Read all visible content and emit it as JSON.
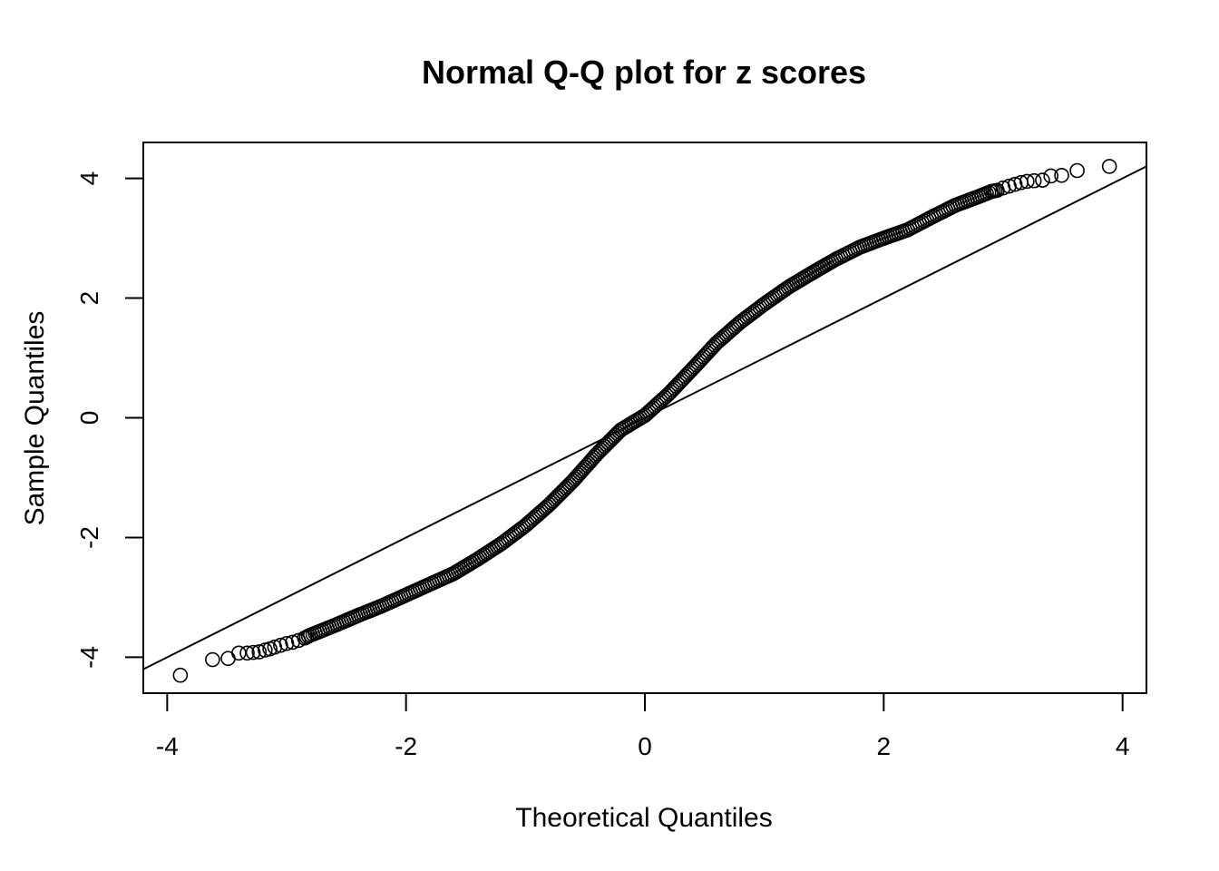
{
  "chart_data": {
    "type": "scatter",
    "title": "Normal Q-Q plot for z scores",
    "xlabel": "Theoretical Quantiles",
    "ylabel": "Sample Quantiles",
    "xlim": [
      -4.2,
      4.2
    ],
    "ylim": [
      -4.6,
      4.6
    ],
    "x_ticks": [
      -4,
      -2,
      0,
      2,
      4
    ],
    "y_ticks": [
      -4,
      -2,
      0,
      2,
      4
    ],
    "x_tick_labels": [
      "-4",
      "-2",
      "0",
      "2",
      "4"
    ],
    "y_tick_labels": [
      "-4",
      "-2",
      "0",
      "2",
      "4"
    ],
    "grid": false,
    "legend": "none",
    "reference_line": {
      "slope": 1.0,
      "intercept": 0.0
    },
    "series": [
      {
        "points": [
          [
            -3.89,
            -4.3
          ],
          [
            -3.62,
            -4.04
          ],
          [
            -3.49,
            -4.02
          ],
          [
            -3.4,
            -3.93
          ],
          [
            -3.33,
            -3.93
          ],
          [
            -3.28,
            -3.92
          ],
          [
            -3.23,
            -3.91
          ],
          [
            -3.18,
            -3.88
          ],
          [
            -3.14,
            -3.86
          ],
          [
            -3.1,
            -3.83
          ],
          [
            -3.05,
            -3.8
          ],
          [
            -3.0,
            -3.77
          ],
          [
            -2.95,
            -3.75
          ],
          [
            -2.9,
            -3.72
          ],
          [
            -2.85,
            -3.68
          ],
          [
            -2.8,
            -3.63
          ],
          [
            -2.6,
            -3.47
          ],
          [
            -2.4,
            -3.3
          ],
          [
            -2.2,
            -3.14
          ],
          [
            -2.0,
            -2.96
          ],
          [
            -1.8,
            -2.78
          ],
          [
            -1.6,
            -2.6
          ],
          [
            -1.4,
            -2.36
          ],
          [
            -1.2,
            -2.1
          ],
          [
            -1.0,
            -1.8
          ],
          [
            -0.8,
            -1.45
          ],
          [
            -0.6,
            -1.05
          ],
          [
            -0.4,
            -0.6
          ],
          [
            -0.2,
            -0.2
          ],
          [
            0.0,
            0.04
          ],
          [
            0.2,
            0.4
          ],
          [
            0.4,
            0.82
          ],
          [
            0.6,
            1.25
          ],
          [
            0.8,
            1.6
          ],
          [
            1.0,
            1.9
          ],
          [
            1.2,
            2.18
          ],
          [
            1.4,
            2.42
          ],
          [
            1.6,
            2.65
          ],
          [
            1.8,
            2.85
          ],
          [
            2.0,
            3.0
          ],
          [
            2.2,
            3.14
          ],
          [
            2.4,
            3.35
          ],
          [
            2.6,
            3.55
          ],
          [
            2.8,
            3.7
          ],
          [
            2.9,
            3.78
          ],
          [
            2.95,
            3.8
          ],
          [
            3.0,
            3.84
          ],
          [
            3.05,
            3.87
          ],
          [
            3.1,
            3.9
          ],
          [
            3.15,
            3.93
          ],
          [
            3.2,
            3.95
          ],
          [
            3.26,
            3.96
          ],
          [
            3.33,
            3.97
          ],
          [
            3.4,
            4.04
          ],
          [
            3.49,
            4.05
          ],
          [
            3.62,
            4.13
          ],
          [
            3.89,
            4.2
          ]
        ]
      }
    ]
  }
}
